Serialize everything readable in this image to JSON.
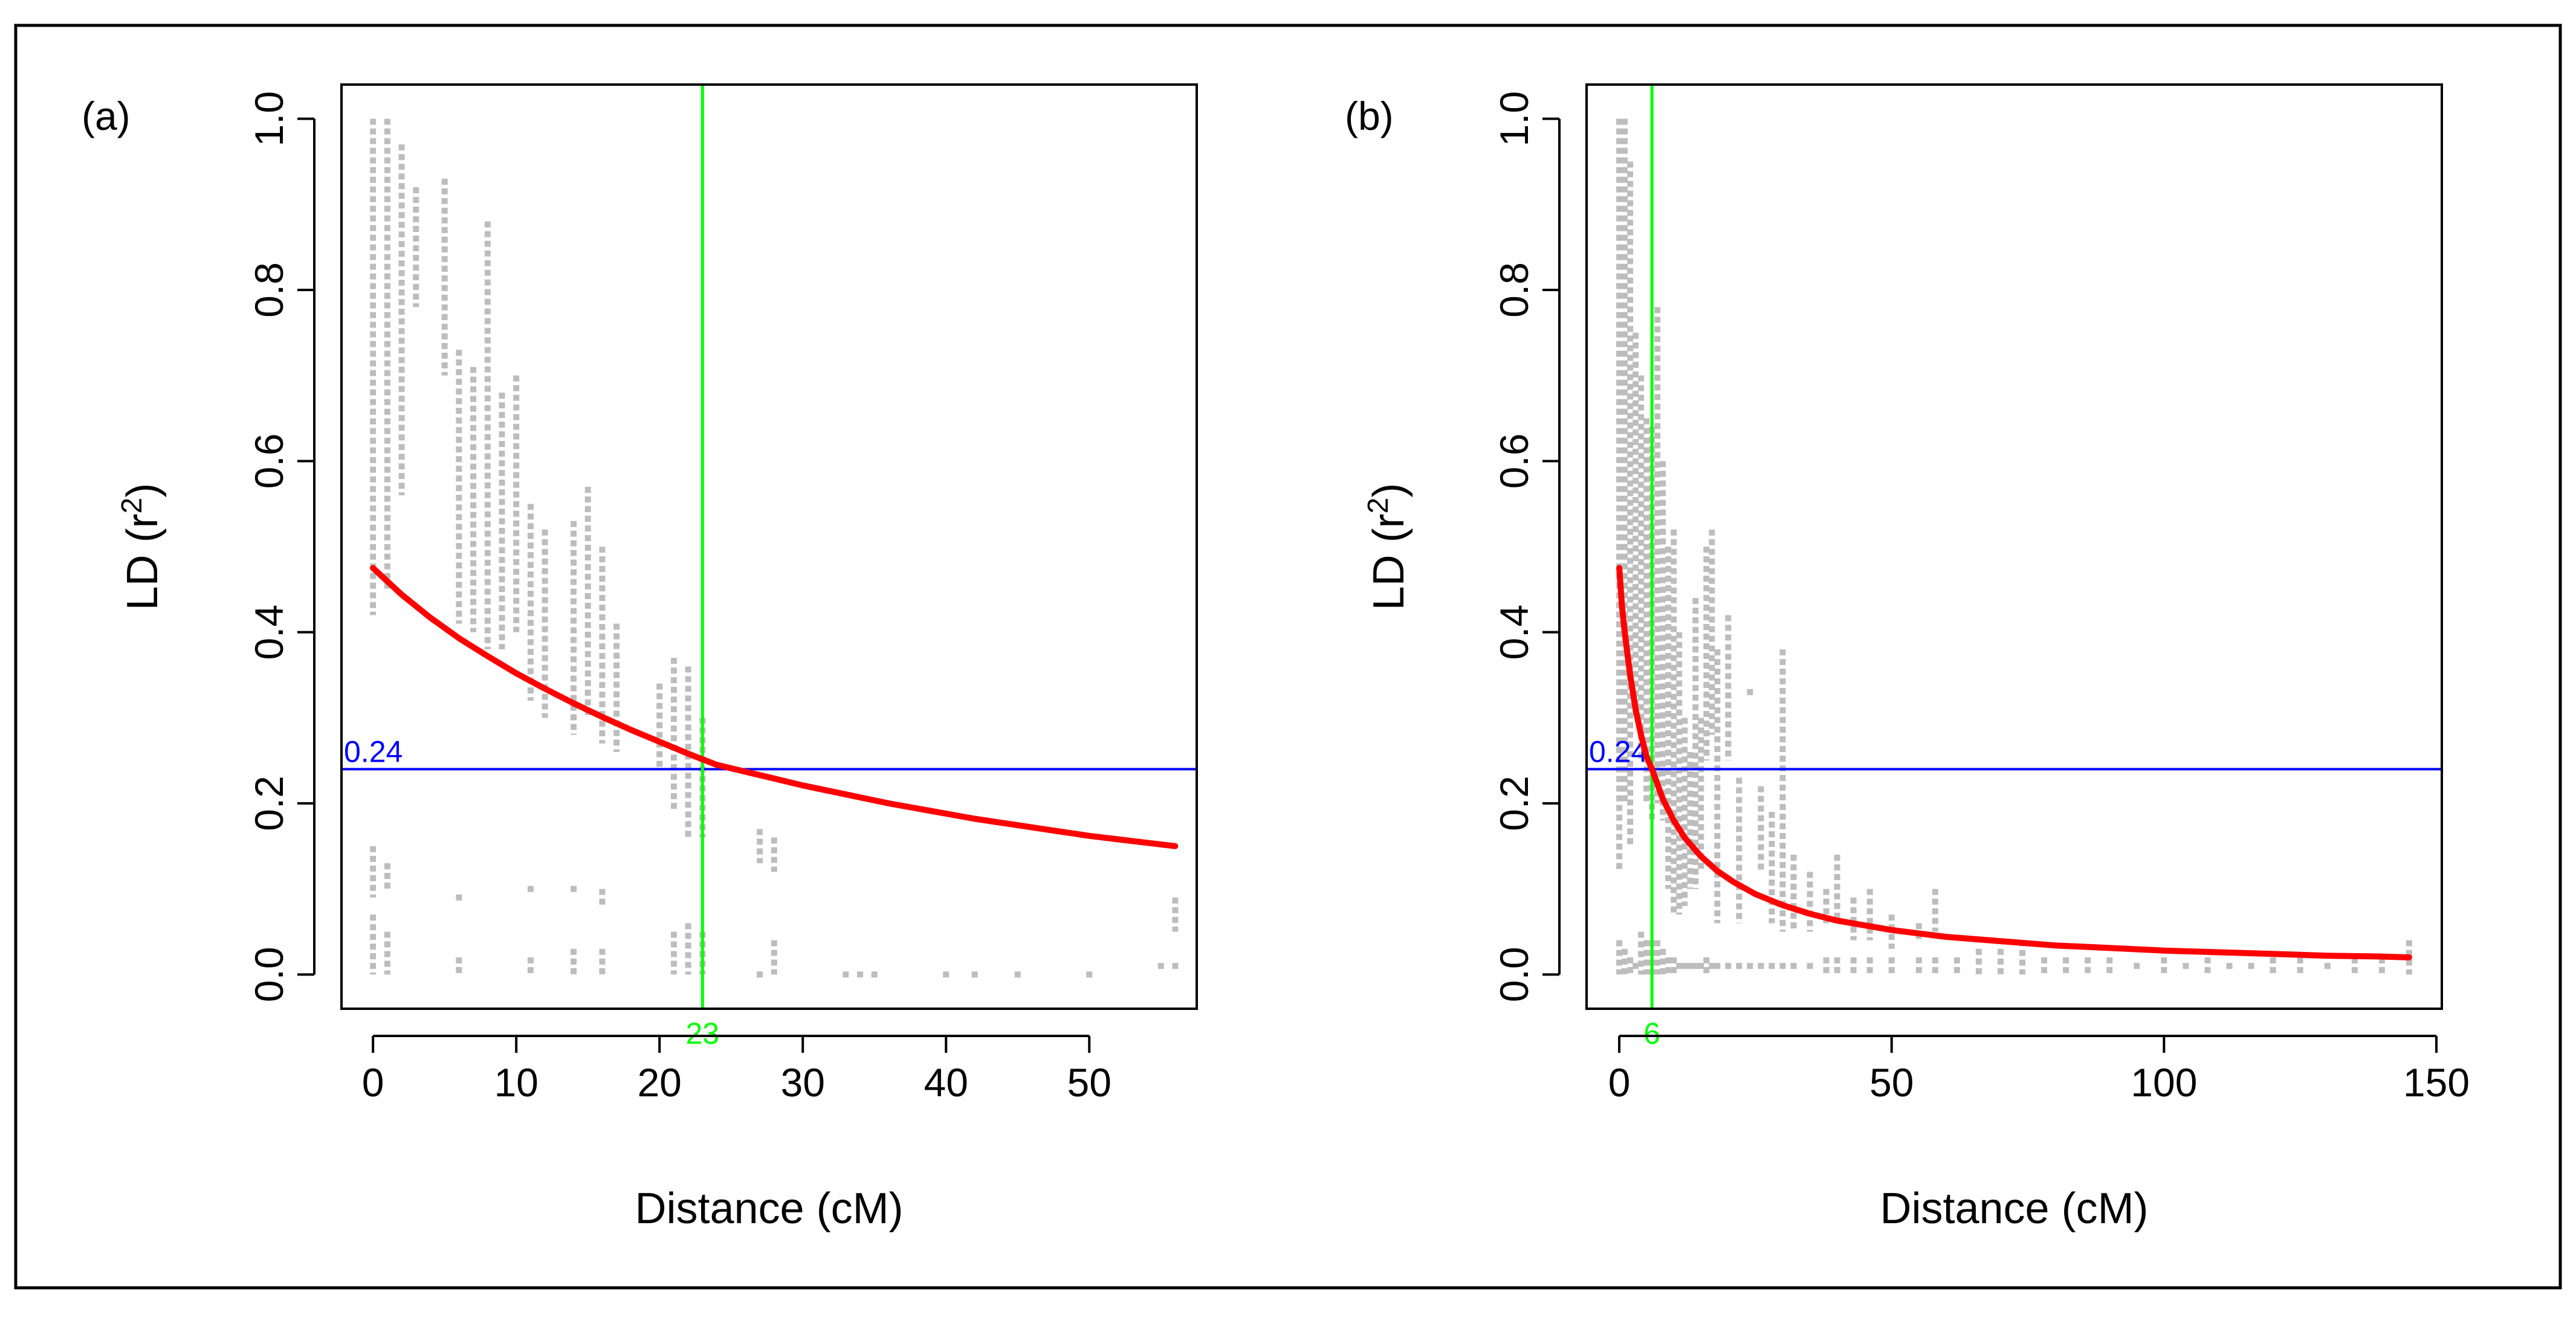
{
  "figure": {
    "panel_a_label": "(a)",
    "panel_b_label": "(b)"
  },
  "colors": {
    "points": "#bdbdbd",
    "curve": "#ff0000",
    "threshold": "#0000ff",
    "cutoff": "#00ff00",
    "axis": "#000000",
    "frame": "#000000"
  },
  "chart_data": [
    {
      "type": "scatter",
      "panel": "(a)",
      "title": "",
      "xlabel": "Distance (cM)",
      "ylabel": "LD (r²)",
      "ylabel_base": "LD (r",
      "ylabel_sup": "2",
      "ylabel_close": ")",
      "xlim": [
        -2.2,
        57.5
      ],
      "ylim": [
        -0.04,
        1.04
      ],
      "xticks": [
        0,
        10,
        20,
        30,
        40,
        50
      ],
      "xtick_labels": [
        "0",
        "10",
        "20",
        "30",
        "40",
        "50"
      ],
      "yticks": [
        0.0,
        0.2,
        0.4,
        0.6,
        0.8,
        1.0
      ],
      "ytick_labels": [
        "0.0",
        "0.2",
        "0.4",
        "0.6",
        "0.8",
        "1.0"
      ],
      "grid": false,
      "threshold": {
        "y": 0.24,
        "label": "0.24"
      },
      "cutoff": {
        "x": 23,
        "label": "23"
      },
      "curve": {
        "x": [
          0,
          2,
          4,
          6,
          8,
          10,
          12,
          14,
          16,
          18,
          20,
          22,
          24,
          26,
          28,
          30,
          32,
          34,
          36,
          38,
          40,
          42,
          44,
          46,
          48,
          50,
          52,
          54,
          56
        ],
        "y": [
          0.475,
          0.444,
          0.417,
          0.393,
          0.372,
          0.352,
          0.334,
          0.317,
          0.301,
          0.286,
          0.272,
          0.258,
          0.245,
          0.237,
          0.229,
          0.221,
          0.214,
          0.207,
          0.2,
          0.194,
          0.188,
          0.182,
          0.177,
          0.172,
          0.167,
          0.162,
          0.158,
          0.154,
          0.15
        ]
      },
      "point_columns": [
        {
          "x": 0,
          "segments": [
            [
              0.0,
              0.07
            ],
            [
              0.09,
              0.15
            ],
            [
              0.42,
              1.0
            ]
          ]
        },
        {
          "x": 1,
          "segments": [
            [
              0.0,
              0.05
            ],
            [
              0.1,
              0.13
            ],
            [
              0.45,
              1.0
            ]
          ]
        },
        {
          "x": 2,
          "segments": [
            [
              0.56,
              0.97
            ]
          ]
        },
        {
          "x": 3,
          "segments": [
            [
              0.78,
              0.92
            ]
          ]
        },
        {
          "x": 5,
          "segments": [
            [
              0.7,
              0.93
            ]
          ]
        },
        {
          "x": 6,
          "segments": [
            [
              0.0,
              0.02
            ],
            [
              0.08,
              0.09
            ],
            [
              0.41,
              0.73
            ]
          ]
        },
        {
          "x": 7,
          "segments": [
            [
              0.4,
              0.71
            ]
          ]
        },
        {
          "x": 8,
          "segments": [
            [
              0.38,
              0.88
            ]
          ]
        },
        {
          "x": 9,
          "segments": [
            [
              0.38,
              0.68
            ]
          ]
        },
        {
          "x": 10,
          "segments": [
            [
              0.4,
              0.7
            ]
          ]
        },
        {
          "x": 11,
          "segments": [
            [
              0.0,
              0.02
            ],
            [
              0.1,
              0.1
            ],
            [
              0.32,
              0.55
            ]
          ]
        },
        {
          "x": 12,
          "segments": [
            [
              0.3,
              0.52
            ]
          ]
        },
        {
          "x": 14,
          "segments": [
            [
              0.0,
              0.03
            ],
            [
              0.09,
              0.1
            ],
            [
              0.28,
              0.53
            ]
          ]
        },
        {
          "x": 15,
          "segments": [
            [
              0.3,
              0.57
            ]
          ]
        },
        {
          "x": 16,
          "segments": [
            [
              0.0,
              0.03
            ],
            [
              0.08,
              0.1
            ],
            [
              0.27,
              0.5
            ]
          ]
        },
        {
          "x": 17,
          "segments": [
            [
              0.26,
              0.41
            ]
          ]
        },
        {
          "x": 20,
          "segments": [
            [
              0.24,
              0.34
            ]
          ]
        },
        {
          "x": 21,
          "segments": [
            [
              0.0,
              0.05
            ],
            [
              0.19,
              0.37
            ]
          ]
        },
        {
          "x": 22,
          "segments": [
            [
              0.0,
              0.06
            ],
            [
              0.16,
              0.36
            ]
          ]
        },
        {
          "x": 23,
          "segments": [
            [
              0.0,
              0.05
            ],
            [
              0.16,
              0.3
            ]
          ]
        },
        {
          "x": 27,
          "segments": [
            [
              0.0,
              0.0
            ],
            [
              0.13,
              0.17
            ]
          ]
        },
        {
          "x": 28,
          "segments": [
            [
              0.0,
              0.04
            ],
            [
              0.12,
              0.16
            ]
          ]
        },
        {
          "x": 33,
          "segments": [
            [
              0.0,
              0.0
            ]
          ]
        },
        {
          "x": 34,
          "segments": [
            [
              0.0,
              0.0
            ]
          ]
        },
        {
          "x": 35,
          "segments": [
            [
              0.0,
              0.0
            ]
          ]
        },
        {
          "x": 40,
          "segments": [
            [
              0.0,
              0.0
            ]
          ]
        },
        {
          "x": 42,
          "segments": [
            [
              0.0,
              0.0
            ]
          ]
        },
        {
          "x": 45,
          "segments": [
            [
              0.0,
              0.0
            ]
          ]
        },
        {
          "x": 50,
          "segments": [
            [
              0.0,
              0.0
            ]
          ]
        },
        {
          "x": 55,
          "segments": [
            [
              0.0,
              0.01
            ]
          ]
        },
        {
          "x": 56,
          "segments": [
            [
              0.0,
              0.01
            ],
            [
              0.05,
              0.09
            ]
          ]
        }
      ]
    },
    {
      "type": "scatter",
      "panel": "(b)",
      "title": "",
      "xlabel": "Distance (cM)",
      "ylabel": "LD (r²)",
      "ylabel_base": "LD (r",
      "ylabel_sup": "2",
      "ylabel_close": ")",
      "xlim": [
        -6,
        151
      ],
      "ylim": [
        -0.04,
        1.04
      ],
      "xticks": [
        0,
        50,
        100,
        150
      ],
      "xtick_labels": [
        "0",
        "50",
        "100",
        "150"
      ],
      "yticks": [
        0.0,
        0.2,
        0.4,
        0.6,
        0.8,
        1.0
      ],
      "ytick_labels": [
        "0.0",
        "0.2",
        "0.4",
        "0.6",
        "0.8",
        "1.0"
      ],
      "grid": false,
      "threshold": {
        "y": 0.24,
        "label": "0.24"
      },
      "cutoff": {
        "x": 6,
        "label": "6"
      },
      "curve": {
        "x": [
          0,
          0.5,
          1,
          2,
          3,
          4,
          5,
          6,
          8,
          10,
          12,
          15,
          18,
          21,
          25,
          30,
          35,
          40,
          50,
          60,
          70,
          80,
          90,
          100,
          110,
          120,
          130,
          140,
          145
        ],
        "y": [
          0.475,
          0.43,
          0.4,
          0.35,
          0.31,
          0.28,
          0.255,
          0.24,
          0.205,
          0.18,
          0.16,
          0.138,
          0.121,
          0.108,
          0.094,
          0.081,
          0.071,
          0.063,
          0.052,
          0.044,
          0.039,
          0.034,
          0.031,
          0.028,
          0.026,
          0.024,
          0.022,
          0.021,
          0.02
        ]
      },
      "point_columns": [
        {
          "x": 0,
          "segments": [
            [
              0.0,
              0.04
            ],
            [
              0.12,
              1.0
            ]
          ]
        },
        {
          "x": 1,
          "segments": [
            [
              0.0,
              0.03
            ],
            [
              0.2,
              1.0
            ]
          ]
        },
        {
          "x": 2,
          "segments": [
            [
              0.0,
              0.02
            ],
            [
              0.15,
              0.95
            ]
          ]
        },
        {
          "x": 3,
          "segments": [
            [
              0.0,
              0.01
            ],
            [
              0.3,
              0.75
            ]
          ]
        },
        {
          "x": 4,
          "segments": [
            [
              0.0,
              0.05
            ],
            [
              0.25,
              0.7
            ]
          ]
        },
        {
          "x": 5,
          "segments": [
            [
              0.0,
              0.04
            ],
            [
              0.2,
              0.65
            ]
          ]
        },
        {
          "x": 6,
          "segments": [
            [
              0.0,
              0.04
            ],
            [
              0.18,
              0.64
            ]
          ]
        },
        {
          "x": 7,
          "segments": [
            [
              0.0,
              0.04
            ],
            [
              0.2,
              0.78
            ]
          ]
        },
        {
          "x": 8,
          "segments": [
            [
              0.0,
              0.03
            ],
            [
              0.18,
              0.6
            ]
          ]
        },
        {
          "x": 9,
          "segments": [
            [
              0.0,
              0.02
            ],
            [
              0.1,
              0.5
            ]
          ]
        },
        {
          "x": 10,
          "segments": [
            [
              0.0,
              0.02
            ],
            [
              0.07,
              0.52
            ]
          ]
        },
        {
          "x": 11,
          "segments": [
            [
              0.0,
              0.01
            ],
            [
              0.07,
              0.4
            ]
          ]
        },
        {
          "x": 12,
          "segments": [
            [
              0.0,
              0.01
            ],
            [
              0.08,
              0.3
            ]
          ]
        },
        {
          "x": 13,
          "segments": [
            [
              0.0,
              0.01
            ],
            [
              0.1,
              0.26
            ]
          ]
        },
        {
          "x": 14,
          "segments": [
            [
              0.0,
              0.01
            ],
            [
              0.1,
              0.44
            ]
          ]
        },
        {
          "x": 15,
          "segments": [
            [
              0.0,
              0.01
            ],
            [
              0.12,
              0.3
            ]
          ]
        },
        {
          "x": 16,
          "segments": [
            [
              0.0,
              0.02
            ],
            [
              0.25,
              0.5
            ]
          ]
        },
        {
          "x": 17,
          "segments": [
            [
              0.0,
              0.01
            ],
            [
              0.28,
              0.52
            ]
          ]
        },
        {
          "x": 18,
          "segments": [
            [
              0.0,
              0.01
            ],
            [
              0.06,
              0.38
            ]
          ]
        },
        {
          "x": 20,
          "segments": [
            [
              0.0,
              0.01
            ],
            [
              0.25,
              0.42
            ]
          ]
        },
        {
          "x": 22,
          "segments": [
            [
              0.0,
              0.01
            ],
            [
              0.06,
              0.23
            ]
          ]
        },
        {
          "x": 24,
          "segments": [
            [
              0.0,
              0.01
            ],
            [
              0.33,
              0.33
            ]
          ]
        },
        {
          "x": 26,
          "segments": [
            [
              0.0,
              0.01
            ],
            [
              0.12,
              0.22
            ]
          ]
        },
        {
          "x": 28,
          "segments": [
            [
              0.0,
              0.01
            ],
            [
              0.06,
              0.19
            ]
          ]
        },
        {
          "x": 30,
          "segments": [
            [
              0.0,
              0.01
            ],
            [
              0.05,
              0.38
            ]
          ]
        },
        {
          "x": 32,
          "segments": [
            [
              0.0,
              0.01
            ],
            [
              0.05,
              0.14
            ]
          ]
        },
        {
          "x": 35,
          "segments": [
            [
              0.0,
              0.01
            ],
            [
              0.05,
              0.12
            ]
          ]
        },
        {
          "x": 38,
          "segments": [
            [
              0.0,
              0.02
            ],
            [
              0.06,
              0.1
            ]
          ]
        },
        {
          "x": 40,
          "segments": [
            [
              0.0,
              0.02
            ],
            [
              0.06,
              0.14
            ]
          ]
        },
        {
          "x": 43,
          "segments": [
            [
              0.0,
              0.02
            ],
            [
              0.04,
              0.09
            ]
          ]
        },
        {
          "x": 46,
          "segments": [
            [
              0.0,
              0.02
            ],
            [
              0.04,
              0.1
            ]
          ]
        },
        {
          "x": 50,
          "segments": [
            [
              0.0,
              0.02
            ],
            [
              0.03,
              0.07
            ]
          ]
        },
        {
          "x": 55,
          "segments": [
            [
              0.0,
              0.02
            ],
            [
              0.04,
              0.06
            ]
          ]
        },
        {
          "x": 58,
          "segments": [
            [
              0.0,
              0.02
            ],
            [
              0.05,
              0.1
            ]
          ]
        },
        {
          "x": 62,
          "segments": [
            [
              0.0,
              0.02
            ]
          ]
        },
        {
          "x": 66,
          "segments": [
            [
              0.0,
              0.03
            ]
          ]
        },
        {
          "x": 70,
          "segments": [
            [
              0.0,
              0.03
            ]
          ]
        },
        {
          "x": 74,
          "segments": [
            [
              0.0,
              0.04
            ]
          ]
        },
        {
          "x": 78,
          "segments": [
            [
              0.0,
              0.02
            ]
          ]
        },
        {
          "x": 82,
          "segments": [
            [
              0.0,
              0.02
            ]
          ]
        },
        {
          "x": 86,
          "segments": [
            [
              0.0,
              0.02
            ]
          ]
        },
        {
          "x": 90,
          "segments": [
            [
              0.0,
              0.02
            ]
          ]
        },
        {
          "x": 95,
          "segments": [
            [
              0.0,
              0.01
            ]
          ]
        },
        {
          "x": 100,
          "segments": [
            [
              0.0,
              0.02
            ]
          ]
        },
        {
          "x": 104,
          "segments": [
            [
              0.0,
              0.01
            ]
          ]
        },
        {
          "x": 108,
          "segments": [
            [
              0.0,
              0.02
            ]
          ]
        },
        {
          "x": 112,
          "segments": [
            [
              0.0,
              0.01
            ]
          ]
        },
        {
          "x": 116,
          "segments": [
            [
              0.0,
              0.01
            ]
          ]
        },
        {
          "x": 120,
          "segments": [
            [
              0.0,
              0.02
            ]
          ]
        },
        {
          "x": 125,
          "segments": [
            [
              0.0,
              0.02
            ]
          ]
        },
        {
          "x": 130,
          "segments": [
            [
              0.0,
              0.01
            ]
          ]
        },
        {
          "x": 135,
          "segments": [
            [
              0.0,
              0.02
            ]
          ]
        },
        {
          "x": 140,
          "segments": [
            [
              0.0,
              0.02
            ]
          ]
        },
        {
          "x": 145,
          "segments": [
            [
              0.0,
              0.04
            ]
          ]
        }
      ]
    }
  ]
}
